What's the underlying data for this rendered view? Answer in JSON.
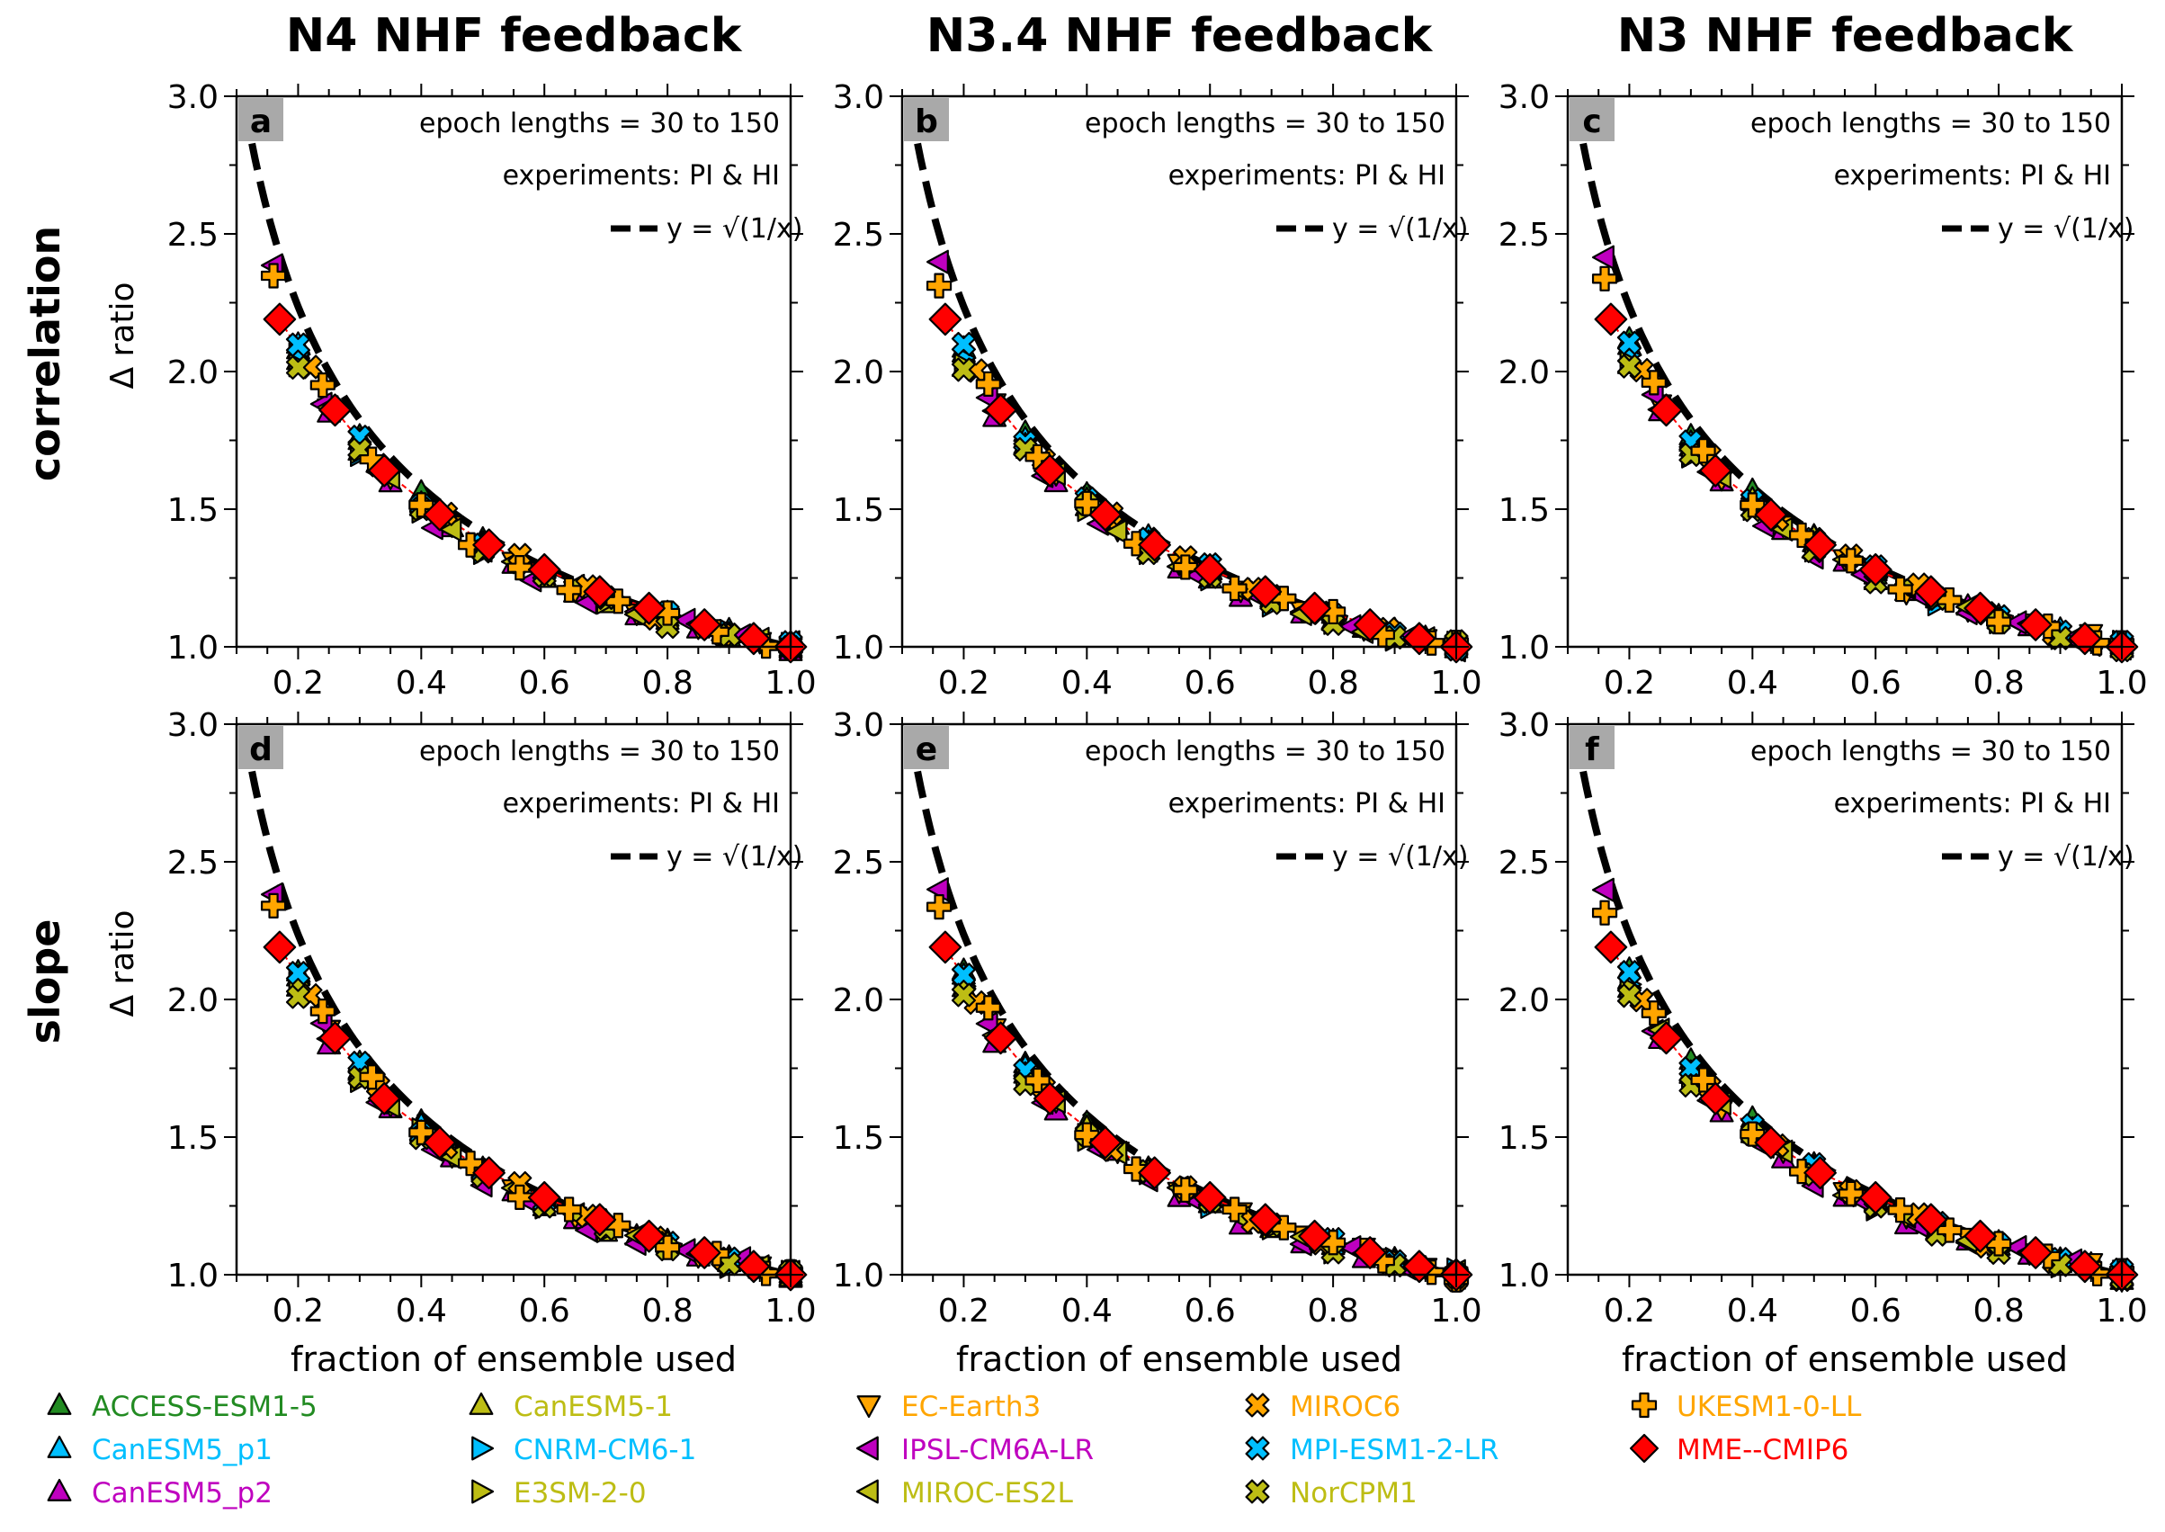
{
  "column_titles": [
    "N4 NHF feedback",
    "N3.4 NHF feedback",
    "N3 NHF feedback"
  ],
  "row_labels": [
    "correlation",
    "slope"
  ],
  "annotations": {
    "epoch": "epoch lengths = 30 to 150",
    "experiments": "experiments: PI & HI",
    "ref_line": "y = √(1/x)"
  },
  "legend": [
    {
      "name": "ACCESS-ESM1-5",
      "color": "#228B22",
      "marker": "triangle-up"
    },
    {
      "name": "CanESM5-1",
      "color": "#BDBD14",
      "marker": "triangle-up"
    },
    {
      "name": "EC-Earth3",
      "color": "#FFA500",
      "marker": "triangle-down"
    },
    {
      "name": "MIROC6",
      "color": "#FFA500",
      "marker": "x"
    },
    {
      "name": "UKESM1-0-LL",
      "color": "#FFA500",
      "marker": "plus"
    },
    {
      "name": "CanESM5_p1",
      "color": "#00BFFF",
      "marker": "triangle-up"
    },
    {
      "name": "CNRM-CM6-1",
      "color": "#00BFFF",
      "marker": "triangle-right"
    },
    {
      "name": "IPSL-CM6A-LR",
      "color": "#BF00BF",
      "marker": "triangle-left"
    },
    {
      "name": "MPI-ESM1-2-LR",
      "color": "#00BFFF",
      "marker": "x"
    },
    {
      "name": "MME--CMIP6",
      "color": "#FF0000",
      "marker": "diamond"
    },
    {
      "name": "CanESM5_p2",
      "color": "#BF00BF",
      "marker": "triangle-up"
    },
    {
      "name": "E3SM-2-0",
      "color": "#BDBD14",
      "marker": "triangle-right"
    },
    {
      "name": "MIROC-ES2L",
      "color": "#BDBD14",
      "marker": "triangle-left"
    },
    {
      "name": "NorCPM1",
      "color": "#BDBD14",
      "marker": "x"
    }
  ],
  "chart_data": [
    {
      "panel": "a",
      "type": "scatter",
      "column": "N4 NHF feedback",
      "row": "correlation",
      "xlabel": "",
      "ylabel": "Δ ratio",
      "xlim": [
        0.1,
        1.0
      ],
      "ylim": [
        1.0,
        3.0
      ],
      "xticks": [
        0.2,
        0.4,
        0.6,
        0.8,
        1.0
      ],
      "yticks": [
        1.0,
        1.5,
        2.0,
        2.5,
        3.0
      ]
    },
    {
      "panel": "b",
      "type": "scatter",
      "column": "N3.4 NHF feedback",
      "row": "correlation",
      "xlabel": "",
      "ylabel": "",
      "xlim": [
        0.1,
        1.0
      ],
      "ylim": [
        1.0,
        3.0
      ],
      "xticks": [
        0.2,
        0.4,
        0.6,
        0.8,
        1.0
      ],
      "yticks": [
        1.0,
        1.5,
        2.0,
        2.5,
        3.0
      ]
    },
    {
      "panel": "c",
      "type": "scatter",
      "column": "N3 NHF feedback",
      "row": "correlation",
      "xlabel": "",
      "ylabel": "",
      "xlim": [
        0.1,
        1.0
      ],
      "ylim": [
        1.0,
        3.0
      ],
      "xticks": [
        0.2,
        0.4,
        0.6,
        0.8,
        1.0
      ],
      "yticks": [
        1.0,
        1.5,
        2.0,
        2.5,
        3.0
      ]
    },
    {
      "panel": "d",
      "type": "scatter",
      "column": "N4 NHF feedback",
      "row": "slope",
      "xlabel": "fraction of ensemble used",
      "ylabel": "Δ ratio",
      "xlim": [
        0.1,
        1.0
      ],
      "ylim": [
        1.0,
        3.0
      ],
      "xticks": [
        0.2,
        0.4,
        0.6,
        0.8,
        1.0
      ],
      "yticks": [
        1.0,
        1.5,
        2.0,
        2.5,
        3.0
      ]
    },
    {
      "panel": "e",
      "type": "scatter",
      "column": "N3.4 NHF feedback",
      "row": "slope",
      "xlabel": "fraction of ensemble used",
      "ylabel": "",
      "xlim": [
        0.1,
        1.0
      ],
      "ylim": [
        1.0,
        3.0
      ],
      "xticks": [
        0.2,
        0.4,
        0.6,
        0.8,
        1.0
      ],
      "yticks": [
        1.0,
        1.5,
        2.0,
        2.5,
        3.0
      ]
    },
    {
      "panel": "f",
      "type": "scatter",
      "column": "N3 NHF feedback",
      "row": "slope",
      "xlabel": "fraction of ensemble used",
      "ylabel": "",
      "xlim": [
        0.1,
        1.0
      ],
      "ylim": [
        1.0,
        3.0
      ],
      "xticks": [
        0.2,
        0.4,
        0.6,
        0.8,
        1.0
      ],
      "yticks": [
        1.0,
        1.5,
        2.0,
        2.5,
        3.0
      ]
    }
  ],
  "series_points": {
    "ACCESS-ESM1-5": [
      [
        0.2,
        2.1
      ],
      [
        0.3,
        1.78
      ],
      [
        0.4,
        1.55
      ],
      [
        0.5,
        1.39
      ],
      [
        0.6,
        1.27
      ],
      [
        0.7,
        1.18
      ],
      [
        0.8,
        1.11
      ],
      [
        0.9,
        1.05
      ],
      [
        1.0,
        1.0
      ]
    ],
    "CanESM5-1": [
      [
        0.2,
        2.03
      ],
      [
        0.3,
        1.72
      ],
      [
        0.4,
        1.52
      ],
      [
        0.5,
        1.38
      ],
      [
        0.6,
        1.26
      ],
      [
        0.7,
        1.17
      ],
      [
        0.8,
        1.1
      ],
      [
        0.9,
        1.05
      ],
      [
        1.0,
        1.0
      ]
    ],
    "EC-Earth3": [
      [
        0.25,
        1.88
      ],
      [
        0.35,
        1.62
      ],
      [
        0.45,
        1.44
      ],
      [
        0.55,
        1.31
      ],
      [
        0.65,
        1.21
      ],
      [
        0.75,
        1.14
      ],
      [
        0.85,
        1.08
      ],
      [
        0.95,
        1.03
      ],
      [
        1.0,
        1.0
      ]
    ],
    "MIROC6": [
      [
        0.22,
        2.0
      ],
      [
        0.33,
        1.68
      ],
      [
        0.44,
        1.47
      ],
      [
        0.56,
        1.32
      ],
      [
        0.67,
        1.21
      ],
      [
        0.78,
        1.12
      ],
      [
        0.89,
        1.05
      ],
      [
        1.0,
        1.0
      ]
    ],
    "UKESM1-0-LL": [
      [
        0.16,
        2.33
      ],
      [
        0.24,
        1.95
      ],
      [
        0.32,
        1.7
      ],
      [
        0.4,
        1.52
      ],
      [
        0.48,
        1.39
      ],
      [
        0.56,
        1.3
      ],
      [
        0.64,
        1.22
      ],
      [
        0.72,
        1.16
      ],
      [
        0.8,
        1.11
      ],
      [
        0.88,
        1.06
      ],
      [
        0.96,
        1.02
      ],
      [
        1.0,
        1.0
      ]
    ],
    "CanESM5_p1": [
      [
        0.2,
        2.08
      ],
      [
        0.3,
        1.74
      ],
      [
        0.4,
        1.53
      ],
      [
        0.5,
        1.39
      ],
      [
        0.6,
        1.27
      ],
      [
        0.7,
        1.18
      ],
      [
        0.8,
        1.11
      ],
      [
        0.9,
        1.05
      ],
      [
        1.0,
        1.0
      ]
    ],
    "CNRM-CM6-1": [
      [
        0.2,
        2.05
      ],
      [
        0.3,
        1.71
      ],
      [
        0.4,
        1.5
      ],
      [
        0.5,
        1.36
      ],
      [
        0.6,
        1.25
      ],
      [
        0.7,
        1.17
      ],
      [
        0.8,
        1.1
      ],
      [
        0.9,
        1.04
      ],
      [
        1.0,
        1.0
      ]
    ],
    "IPSL-CM6A-LR": [
      [
        0.16,
        2.4
      ],
      [
        0.24,
        1.9
      ],
      [
        0.33,
        1.62
      ],
      [
        0.42,
        1.45
      ],
      [
        0.5,
        1.33
      ],
      [
        0.58,
        1.25
      ],
      [
        0.67,
        1.18
      ],
      [
        0.75,
        1.13
      ],
      [
        0.83,
        1.08
      ],
      [
        0.92,
        1.04
      ],
      [
        1.0,
        1.0
      ]
    ],
    "MPI-ESM1-2-LR": [
      [
        0.2,
        2.1
      ],
      [
        0.3,
        1.75
      ],
      [
        0.4,
        1.53
      ],
      [
        0.5,
        1.39
      ],
      [
        0.6,
        1.28
      ],
      [
        0.7,
        1.18
      ],
      [
        0.8,
        1.11
      ],
      [
        0.9,
        1.05
      ],
      [
        1.0,
        1.0
      ]
    ],
    "MME--CMIP6": [
      [
        0.17,
        2.19
      ],
      [
        0.26,
        1.86
      ],
      [
        0.34,
        1.64
      ],
      [
        0.43,
        1.48
      ],
      [
        0.51,
        1.37
      ],
      [
        0.6,
        1.28
      ],
      [
        0.69,
        1.2
      ],
      [
        0.77,
        1.14
      ],
      [
        0.86,
        1.08
      ],
      [
        0.94,
        1.03
      ],
      [
        1.0,
        1.0
      ]
    ],
    "CanESM5_p2": [
      [
        0.25,
        1.85
      ],
      [
        0.35,
        1.6
      ],
      [
        0.45,
        1.43
      ],
      [
        0.55,
        1.3
      ],
      [
        0.65,
        1.2
      ],
      [
        0.75,
        1.13
      ],
      [
        0.85,
        1.07
      ],
      [
        0.95,
        1.02
      ],
      [
        1.0,
        1.0
      ]
    ],
    "E3SM-2-0": [
      [
        0.2,
        2.04
      ],
      [
        0.3,
        1.72
      ],
      [
        0.4,
        1.51
      ],
      [
        0.5,
        1.37
      ],
      [
        0.6,
        1.26
      ],
      [
        0.7,
        1.17
      ],
      [
        0.8,
        1.1
      ],
      [
        0.9,
        1.04
      ],
      [
        1.0,
        1.0
      ]
    ],
    "MIROC-ES2L": [
      [
        0.25,
        1.87
      ],
      [
        0.35,
        1.61
      ],
      [
        0.45,
        1.43
      ],
      [
        0.55,
        1.3
      ],
      [
        0.65,
        1.21
      ],
      [
        0.75,
        1.13
      ],
      [
        0.85,
        1.07
      ],
      [
        0.95,
        1.02
      ],
      [
        1.0,
        1.0
      ]
    ],
    "NorCPM1": [
      [
        0.2,
        2.0
      ],
      [
        0.3,
        1.7
      ],
      [
        0.4,
        1.5
      ],
      [
        0.5,
        1.36
      ],
      [
        0.6,
        1.25
      ],
      [
        0.7,
        1.16
      ],
      [
        0.8,
        1.09
      ],
      [
        0.9,
        1.04
      ],
      [
        1.0,
        1.0
      ]
    ]
  }
}
